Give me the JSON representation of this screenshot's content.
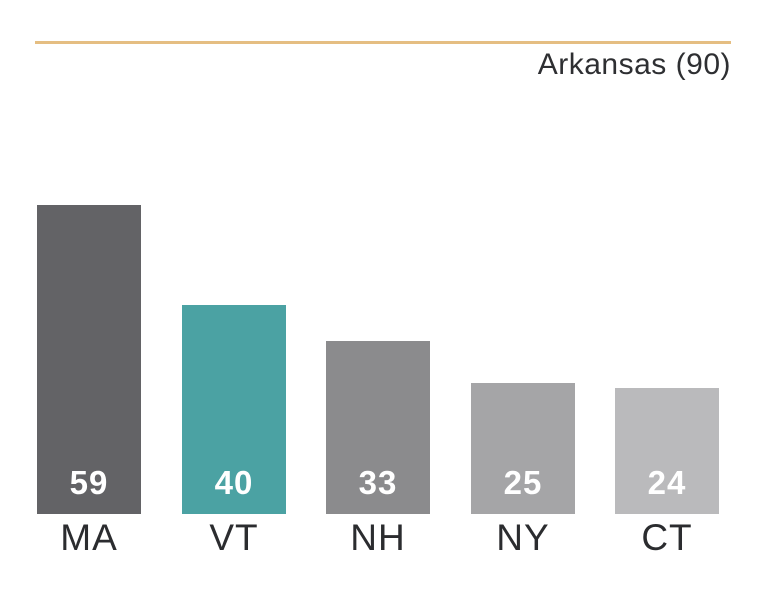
{
  "header": {
    "legend_label": "Arkansas (90)"
  },
  "colors": {
    "rule": "#e5be82",
    "legend_text": "#2e2f32",
    "category_text": "#2b2c2f",
    "value_text": "#ffffff"
  },
  "chart_data": {
    "type": "bar",
    "title": "",
    "categories": [
      "MA",
      "VT",
      "NH",
      "NY",
      "CT"
    ],
    "values": [
      59,
      40,
      33,
      25,
      24
    ],
    "bar_colors": [
      "#636366",
      "#4ba2a3",
      "#8b8b8d",
      "#a5a5a7",
      "#bababc"
    ],
    "annotations": [
      "Arkansas (90)"
    ],
    "value_labels_position": "inside-bottom",
    "xlabel": "",
    "ylabel": "",
    "ylim": [
      0,
      59
    ],
    "grid": false,
    "axis_lines": false,
    "legend_position": "top-right"
  }
}
